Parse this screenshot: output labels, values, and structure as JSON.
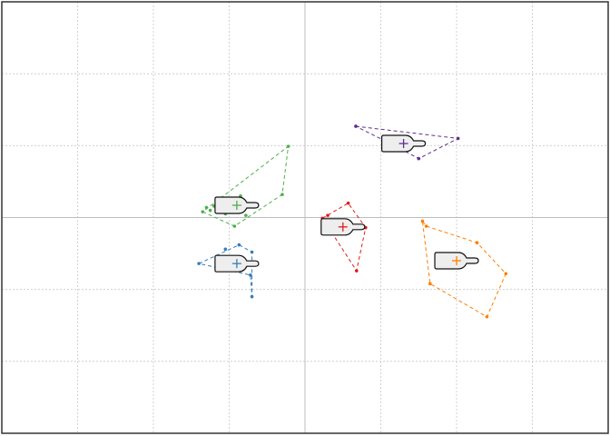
{
  "chart_data": {
    "type": "scatter",
    "title": "",
    "xlabel": "",
    "ylabel": "",
    "grid": true,
    "xlim": [
      -4,
      4
    ],
    "ylim": [
      -3,
      3
    ],
    "xgrid": [
      -3,
      -2,
      -1,
      0,
      1,
      2,
      3
    ],
    "ygrid": [
      -2,
      -1,
      0,
      1,
      2
    ],
    "axis_lines": {
      "x": 0,
      "y": 0
    },
    "centroid_marker": "bottle",
    "series": [
      {
        "color": "#4daf4a",
        "centroid": [
          -0.9,
          0.17
        ],
        "hull": [
          [
            -1.35,
            0.08
          ],
          [
            -0.93,
            -0.12
          ],
          [
            -0.3,
            0.32
          ],
          [
            -0.22,
            0.99
          ]
        ],
        "points": [
          [
            -1.35,
            0.08
          ],
          [
            -1.3,
            0.14
          ],
          [
            -1.25,
            0.1
          ],
          [
            -1.2,
            0.16
          ],
          [
            -1.1,
            0.12
          ],
          [
            -1.05,
            0.05
          ],
          [
            -0.98,
            0.15
          ],
          [
            -0.9,
            0.2
          ],
          [
            -0.85,
            0.3
          ],
          [
            -0.93,
            -0.12
          ],
          [
            -0.78,
            0.03
          ],
          [
            -0.3,
            0.32
          ],
          [
            -0.22,
            0.99
          ]
        ]
      },
      {
        "color": "#377eb8",
        "centroid": [
          -0.9,
          -0.64
        ],
        "hull": [
          [
            -1.4,
            -0.64
          ],
          [
            -0.87,
            -0.38
          ],
          [
            -0.7,
            -0.48
          ],
          [
            -0.7,
            -1.1
          ],
          [
            -0.72,
            -0.8
          ]
        ],
        "points": [
          [
            -1.4,
            -0.64
          ],
          [
            -1.05,
            -0.44
          ],
          [
            -0.87,
            -0.38
          ],
          [
            -0.7,
            -0.48
          ],
          [
            -0.72,
            -0.8
          ],
          [
            -0.7,
            -1.1
          ]
        ]
      },
      {
        "color": "#e41a1c",
        "centroid": [
          0.5,
          -0.13
        ],
        "hull": [
          [
            0.23,
            -0.01
          ],
          [
            0.57,
            0.2
          ],
          [
            0.8,
            -0.14
          ],
          [
            0.68,
            -0.74
          ]
        ],
        "points": [
          [
            0.23,
            -0.01
          ],
          [
            0.3,
            0.03
          ],
          [
            0.57,
            0.2
          ],
          [
            0.8,
            -0.14
          ],
          [
            0.68,
            -0.74
          ]
        ]
      },
      {
        "color": "#ff7f00",
        "centroid": [
          2.0,
          -0.6
        ],
        "hull": [
          [
            1.55,
            -0.05
          ],
          [
            1.6,
            -0.12
          ],
          [
            2.27,
            -0.35
          ],
          [
            2.65,
            -0.78
          ],
          [
            2.4,
            -1.38
          ],
          [
            1.65,
            -0.92
          ]
        ],
        "points": [
          [
            1.55,
            -0.05
          ],
          [
            1.6,
            -0.12
          ],
          [
            2.27,
            -0.35
          ],
          [
            2.65,
            -0.78
          ],
          [
            2.4,
            -1.38
          ],
          [
            1.65,
            -0.92
          ]
        ]
      },
      {
        "color": "#5e2f8e",
        "centroid": [
          1.3,
          1.03
        ],
        "hull": [
          [
            0.67,
            1.27
          ],
          [
            2.02,
            1.1
          ],
          [
            1.5,
            0.82
          ],
          [
            1.2,
            0.99
          ]
        ],
        "points": [
          [
            0.67,
            1.27
          ],
          [
            2.02,
            1.1
          ],
          [
            1.5,
            0.82
          ],
          [
            1.2,
            0.99
          ],
          [
            1.12,
            1.03
          ]
        ]
      }
    ]
  }
}
